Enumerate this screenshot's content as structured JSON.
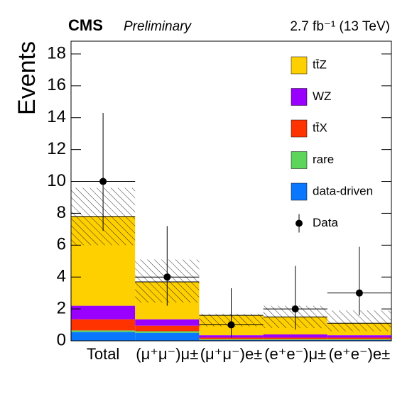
{
  "chart_data": {
    "type": "stacked_histogram",
    "title": "CMS",
    "subtitle": "Preliminary",
    "luminosity": "2.7 fb⁻¹ (13 TeV)",
    "y_label": "Events",
    "categories": [
      "Total",
      "(μ⁺μ⁻)μ±",
      "(μ⁺μ⁻)e±",
      "(e⁺e⁻)μ±",
      "(e⁺e⁻)e±"
    ],
    "series": [
      {
        "name": "data-driven",
        "color": "#0a77ff",
        "values": [
          0.55,
          0.5,
          0.05,
          0.05,
          0.05
        ]
      },
      {
        "name": "rare",
        "color": "#5bd65b",
        "values": [
          0.1,
          0.1,
          0.05,
          0.05,
          0.05
        ]
      },
      {
        "name": "tt̄X",
        "color": "#ff3300",
        "values": [
          0.7,
          0.35,
          0.1,
          0.1,
          0.1
        ]
      },
      {
        "name": "WZ",
        "color": "#9900ff",
        "values": [
          0.85,
          0.4,
          0.15,
          0.2,
          0.15
        ]
      },
      {
        "name": "tt̄Z",
        "color": "#ffd000",
        "values": [
          5.6,
          2.35,
          1.25,
          1.1,
          0.75
        ]
      }
    ],
    "uncertainty": {
      "low": [
        6.0,
        2.4,
        0.9,
        0.8,
        0.6
      ],
      "high": [
        9.6,
        5.1,
        1.7,
        2.2,
        1.9
      ]
    },
    "data": {
      "name": "Data",
      "color": "#000000",
      "values": [
        10,
        4,
        1,
        2,
        3
      ],
      "yerr_low": [
        3.1,
        1.8,
        0.8,
        1.3,
        1.4
      ],
      "yerr_high": [
        4.3,
        3.2,
        2.3,
        2.7,
        2.9
      ]
    },
    "ylim": [
      0,
      18.8
    ],
    "yticks": [
      0,
      2,
      4,
      6,
      8,
      10,
      12,
      14,
      16,
      18
    ],
    "legend": "top-right"
  }
}
